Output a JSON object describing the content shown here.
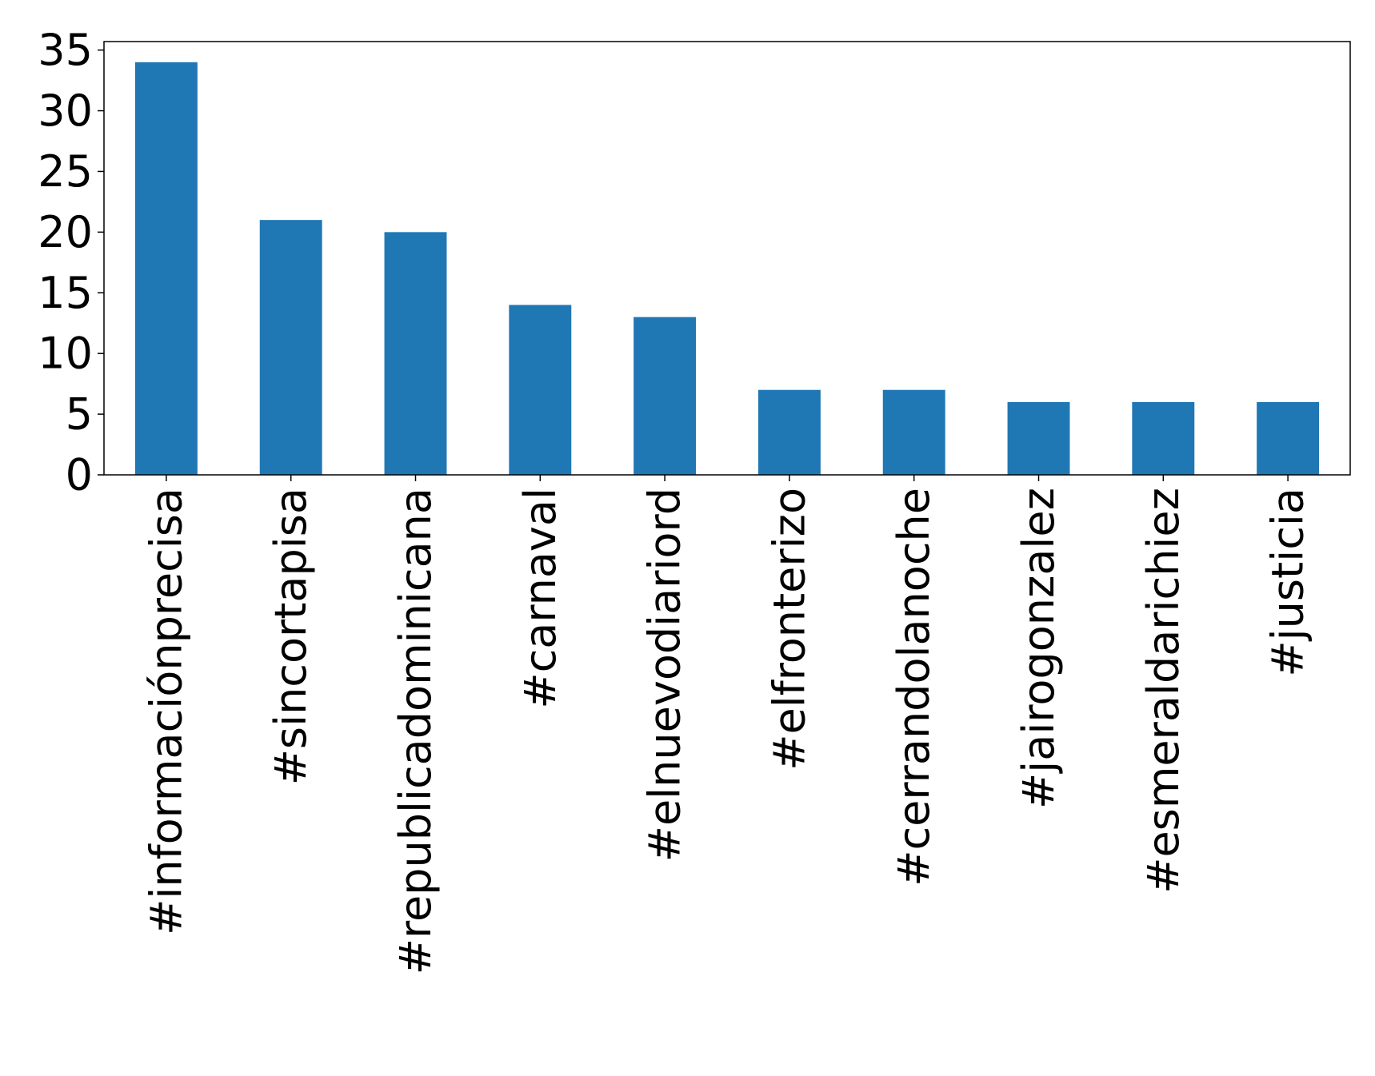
{
  "chart_data": {
    "type": "bar",
    "title": "",
    "xlabel": "",
    "ylabel": "",
    "categories": [
      "#informaciónprecisa",
      "#sincortapisa",
      "#republicadominicana",
      "#carnaval",
      "#elnuevodiariord",
      "#elfronterizo",
      "#cerrandolanoche",
      "#jairogonzalez",
      "#esmeraldarichiez",
      "#justicia"
    ],
    "values": [
      34,
      21,
      20,
      14,
      13,
      7,
      7,
      6,
      6,
      6
    ],
    "ylim": [
      0,
      35.7
    ],
    "yticks": [
      "0",
      "5",
      "10",
      "15",
      "20",
      "25",
      "30",
      "35"
    ],
    "grid": false,
    "legend": "none",
    "bar_color": "#1f77b4"
  }
}
